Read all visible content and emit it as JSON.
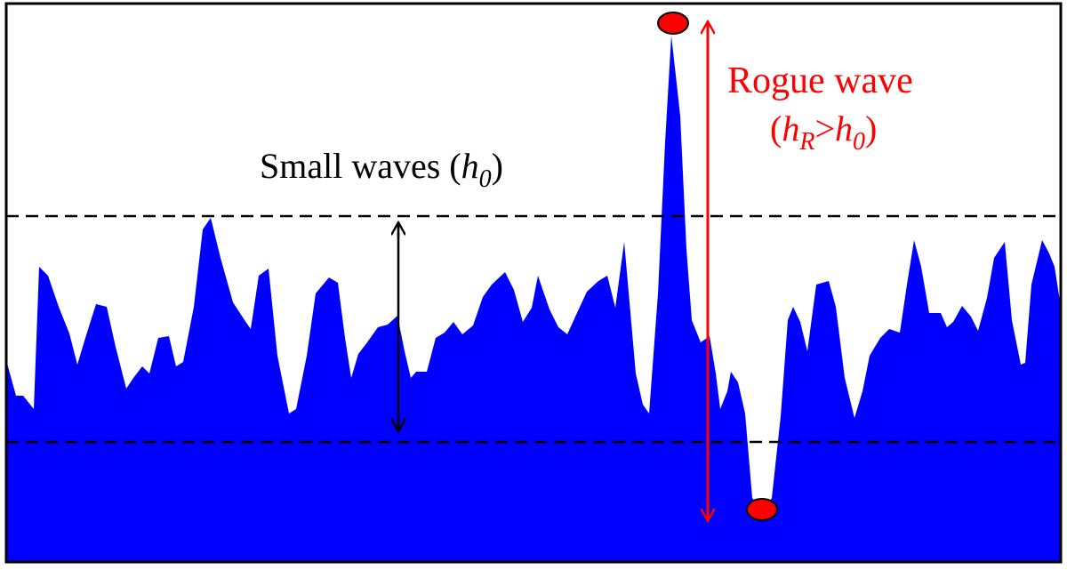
{
  "diagram": {
    "small_waves": {
      "text": "Small waves (",
      "symbol": "h",
      "subscript": "0",
      "close": ")"
    },
    "rogue_wave": {
      "title": "Rogue wave",
      "relation": {
        "open": "(",
        "lhs": "h",
        "lhs_sub": "R",
        "op": ">",
        "rhs": "h",
        "rhs_sub": "0",
        "close": ")"
      }
    },
    "colors": {
      "water": "#0000ff",
      "rogue": "#ff0000",
      "reference_lines": "#000000",
      "frame": "#000000",
      "background": "#ffffff"
    }
  }
}
